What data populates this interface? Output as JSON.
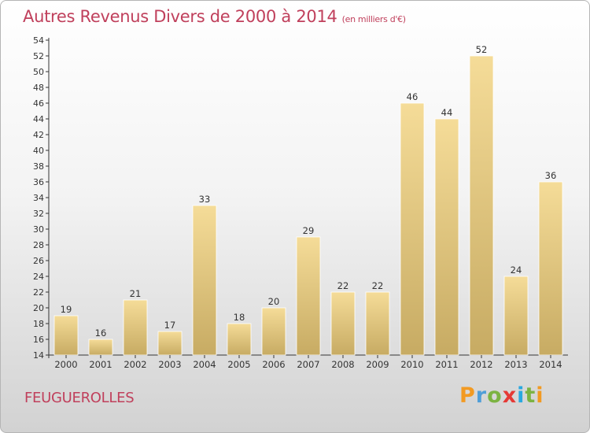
{
  "chart_data": {
    "type": "bar",
    "title": "Autres Revenus Divers de 2000 à 2014",
    "unit_note": "(en milliers d'€)",
    "categories": [
      "2000",
      "2001",
      "2002",
      "2003",
      "2004",
      "2005",
      "2006",
      "2007",
      "2008",
      "2009",
      "2010",
      "2011",
      "2012",
      "2013",
      "2014"
    ],
    "values": [
      19,
      16,
      21,
      17,
      33,
      18,
      20,
      29,
      22,
      22,
      46,
      44,
      52,
      24,
      36
    ],
    "ylim": [
      14,
      54
    ],
    "yticks": [
      14,
      16,
      18,
      20,
      22,
      24,
      26,
      28,
      30,
      32,
      34,
      36,
      38,
      40,
      42,
      44,
      46,
      48,
      50,
      52,
      54
    ],
    "grid": false,
    "bar_color": "#e8cd86"
  },
  "commune": "FEUGUEROLLES",
  "brand": {
    "letters": [
      "P",
      "r",
      "o",
      "x",
      "i",
      "t",
      "i"
    ],
    "colors": [
      "#f29a22",
      "#4f9ed8",
      "#7cb342",
      "#e53935",
      "#29a8e0",
      "#7cb342",
      "#f29a22"
    ]
  },
  "colors": {
    "title": "#c0405c",
    "axis": "#333333"
  }
}
